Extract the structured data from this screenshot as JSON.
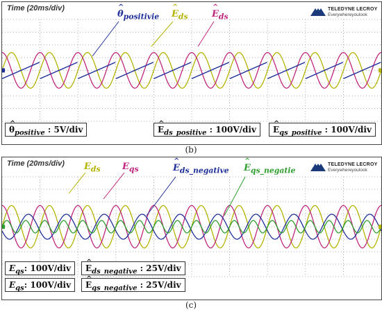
{
  "panel_b": {
    "time_label": "Time (20ms/div)",
    "brand": {
      "name": "TELEDYNE LECROY",
      "tagline": "Everywhereyoulook"
    },
    "labels": {
      "theta": {
        "sym": "θ",
        "sub": "positivie"
      },
      "eds": {
        "sym": "E",
        "sub": "ds"
      },
      "eds2": {
        "sym": "E",
        "sub": "ds"
      }
    },
    "boxes": [
      {
        "sym": "θ",
        "sub": "positive",
        "value": ": 5V/div"
      },
      {
        "sym": "E",
        "sub": "ds_positive",
        "value": ": 100V/div"
      },
      {
        "sym": "E",
        "sub": "qs_positive",
        "value": ": 100V/div"
      }
    ],
    "caption": "(b)"
  },
  "panel_c": {
    "time_label": "Time (20ms/div)",
    "brand": {
      "name": "TELEDYNE LECROY",
      "tagline": "Everywhereyoulook"
    },
    "labels": {
      "eds": {
        "sym": "E",
        "sub": "ds"
      },
      "eqs": {
        "sym": "E",
        "sub": "qs"
      },
      "eds_neg": {
        "sym": "E",
        "sub": "ds_negative"
      },
      "eqs_neg": {
        "sym": "E",
        "sub": "qs_negatie"
      }
    },
    "boxes": [
      {
        "sym": "E",
        "sub": "qs",
        "value": ": 100V/div"
      },
      {
        "sym": "E",
        "sub": "ds_negative",
        "value": ": 25V/div"
      },
      {
        "sym": "E",
        "sub": "qs",
        "value": ": 100V/div"
      },
      {
        "sym": "E",
        "sub": "qs_negative",
        "value": ": 25V/div"
      }
    ],
    "caption": "(c)"
  },
  "colors": {
    "yellow": "#b3b300",
    "magenta": "#c0267c",
    "blue": "#1f2f9a",
    "green": "#2e9e2e",
    "grid": "#9a9a9a"
  },
  "chart_data": [
    {
      "type": "line",
      "panel": "b",
      "x_unit": "ms",
      "x_range": [
        0,
        200
      ],
      "grid": true,
      "series": [
        {
          "name": "Êds",
          "shape": "sine",
          "amplitude_div": 1.4,
          "period_ms": 20,
          "phase_deg": 0,
          "color": "#b3b300"
        },
        {
          "name": "Êds",
          "shape": "sine",
          "amplitude_div": 1.4,
          "period_ms": 20,
          "phase_deg": 90,
          "color": "#c0267c"
        },
        {
          "name": "θpositivie",
          "shape": "sawtooth",
          "amplitude_div": 0.65,
          "period_ms": 20,
          "color": "#1f2f9a"
        }
      ]
    },
    {
      "type": "line",
      "panel": "c",
      "x_unit": "ms",
      "x_range": [
        0,
        200
      ],
      "grid": true,
      "series": [
        {
          "name": "Eds",
          "shape": "sine",
          "amplitude_div": 1.7,
          "period_ms": 20,
          "phase_deg": 0,
          "color": "#b3b300"
        },
        {
          "name": "Eqs",
          "shape": "sine",
          "amplitude_div": 1.7,
          "period_ms": 20,
          "phase_deg": 90,
          "color": "#c0267c"
        },
        {
          "name": "Êds_negative",
          "shape": "sine",
          "amplitude_div": 1.0,
          "period_ms": 20,
          "phase_deg": 200,
          "color": "#1f2f9a"
        },
        {
          "name": "Êqs_negatie",
          "shape": "sine",
          "amplitude_div": 0.5,
          "period_ms": 10,
          "phase_deg": 0,
          "color": "#2e9e2e"
        }
      ]
    }
  ]
}
